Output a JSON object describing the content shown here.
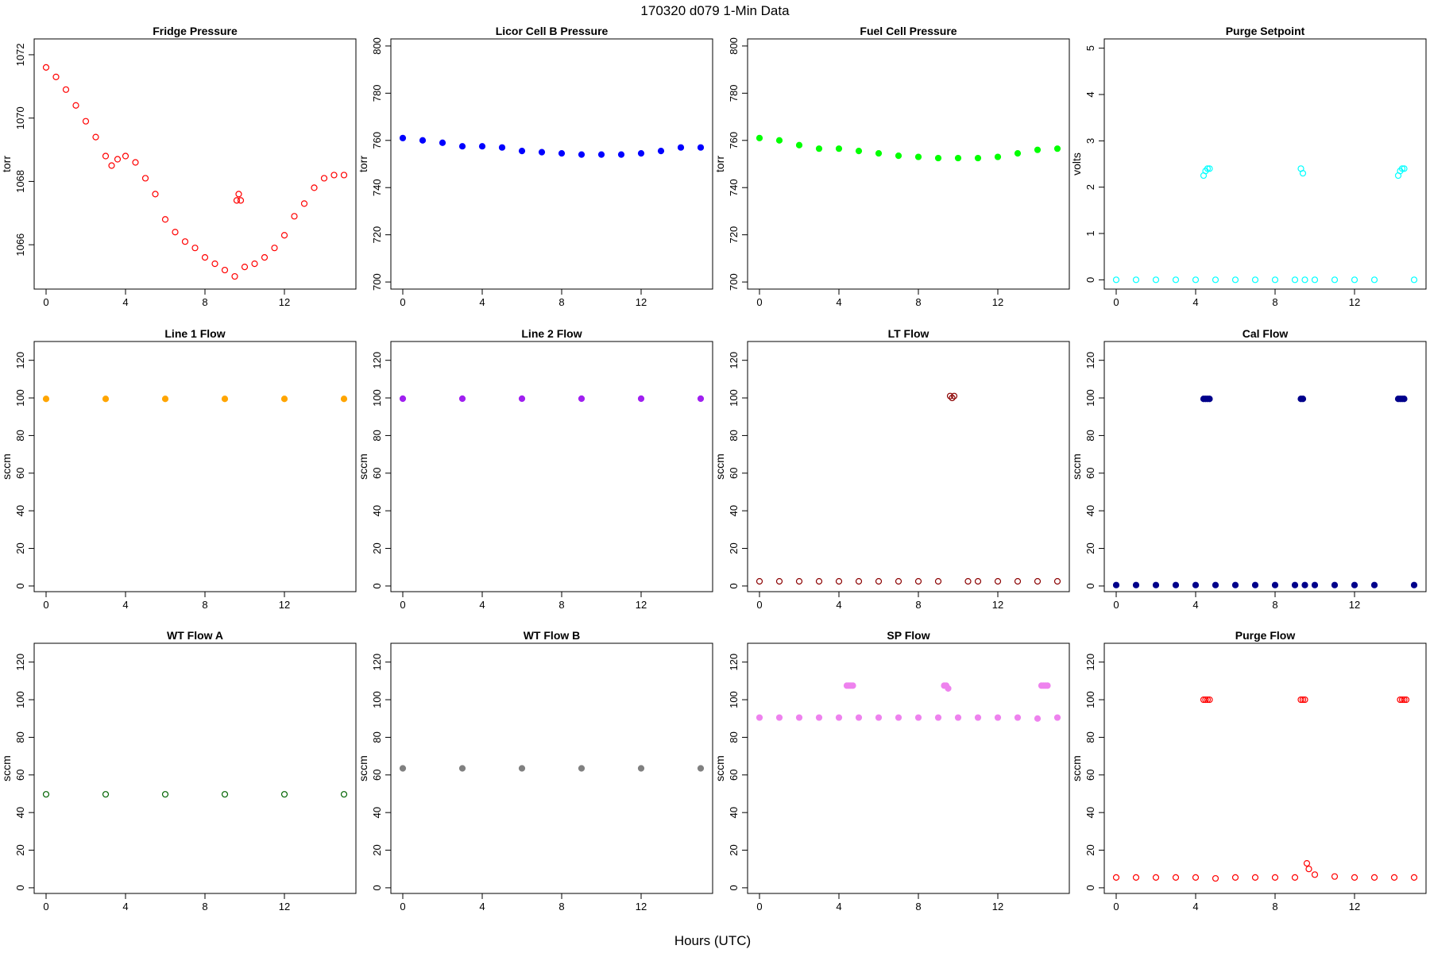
{
  "figure": {
    "title": "170320   d079   1-Min Data",
    "xlabel": "Hours (UTC)"
  },
  "chart_data": [
    {
      "type": "scatter",
      "title": "Fridge Pressure",
      "ylabel": "torr",
      "xlim": [
        0,
        15
      ],
      "ylim": [
        1064.6,
        1072.5
      ],
      "xticks": [
        0,
        4,
        8,
        12
      ],
      "yticks": [
        1066,
        1068,
        1070,
        1072
      ],
      "color": "#ff0000",
      "marker": "open-circle",
      "series": [
        {
          "x": [
            0,
            0.5,
            1,
            1.5,
            2,
            2.5,
            3,
            3.3,
            3.6,
            4,
            4.5,
            5,
            5.5,
            6,
            6.5,
            7,
            7.5,
            8,
            8.5,
            9,
            9.5,
            9.6,
            9.7,
            9.8,
            10,
            10.5,
            11,
            11.5,
            12,
            12.5,
            13,
            13.5,
            14,
            14.5,
            15
          ],
          "y": [
            1071.6,
            1071.3,
            1070.9,
            1070.4,
            1069.9,
            1069.4,
            1068.8,
            1068.5,
            1068.7,
            1068.8,
            1068.6,
            1068.1,
            1067.6,
            1066.8,
            1066.4,
            1066.1,
            1065.9,
            1065.6,
            1065.4,
            1065.2,
            1065.0,
            1067.4,
            1067.6,
            1067.4,
            1065.3,
            1065.4,
            1065.6,
            1065.9,
            1066.3,
            1066.9,
            1067.3,
            1067.8,
            1068.1,
            1068.2,
            1068.2
          ]
        }
      ]
    },
    {
      "type": "scatter",
      "title": "Licor Cell B Pressure",
      "ylabel": "torr",
      "xlim": [
        0,
        15
      ],
      "ylim": [
        697,
        803
      ],
      "xticks": [
        0,
        4,
        8,
        12
      ],
      "yticks": [
        700,
        720,
        740,
        760,
        780,
        800
      ],
      "color": "#0000ff",
      "marker": "filled-circle",
      "series": [
        {
          "x": [
            0,
            1,
            2,
            3,
            4,
            5,
            6,
            7,
            8,
            9,
            10,
            11,
            12,
            13,
            14,
            15
          ],
          "y": [
            761,
            760,
            759,
            757.5,
            757.5,
            757,
            755.5,
            755,
            754.5,
            754,
            754,
            754,
            754.5,
            755.5,
            757,
            757
          ]
        }
      ]
    },
    {
      "type": "scatter",
      "title": "Fuel Cell Pressure",
      "ylabel": "torr",
      "xlim": [
        0,
        15
      ],
      "ylim": [
        697,
        803
      ],
      "xticks": [
        0,
        4,
        8,
        12
      ],
      "yticks": [
        700,
        720,
        740,
        760,
        780,
        800
      ],
      "color": "#00ff00",
      "marker": "filled-circle",
      "series": [
        {
          "x": [
            0,
            1,
            2,
            3,
            4,
            5,
            6,
            7,
            8,
            9,
            10,
            11,
            12,
            13,
            14,
            15
          ],
          "y": [
            761,
            760,
            758,
            756.5,
            756.5,
            755.5,
            754.5,
            753.5,
            753,
            752.5,
            752.5,
            752.5,
            753,
            754.5,
            756,
            756.5
          ]
        }
      ]
    },
    {
      "type": "scatter",
      "title": "Purge Setpoint",
      "ylabel": "volts",
      "xlim": [
        0,
        15
      ],
      "ylim": [
        -0.2,
        5.2
      ],
      "xticks": [
        0,
        4,
        8,
        12
      ],
      "yticks": [
        0,
        1,
        2,
        3,
        4,
        5
      ],
      "color": "#00ffff",
      "marker": "open-circle",
      "series": [
        {
          "x": [
            0,
            1,
            2,
            3,
            4,
            4.4,
            4.5,
            4.6,
            4.7,
            5,
            6,
            7,
            8,
            9,
            9.3,
            9.4,
            9.5,
            10,
            11,
            12,
            13,
            14.2,
            14.3,
            14.4,
            14.5,
            15
          ],
          "y": [
            0,
            0,
            0,
            0,
            0,
            2.25,
            2.35,
            2.4,
            2.4,
            0,
            0,
            0,
            0,
            0,
            2.4,
            2.3,
            0,
            0,
            0,
            0,
            0,
            2.25,
            2.35,
            2.4,
            2.4,
            0
          ]
        }
      ]
    },
    {
      "type": "scatter",
      "title": "Line 1 Flow",
      "ylabel": "sccm",
      "xlim": [
        0,
        15
      ],
      "ylim": [
        -3,
        130
      ],
      "xticks": [
        0,
        4,
        8,
        12
      ],
      "yticks": [
        0,
        20,
        40,
        60,
        80,
        100,
        120
      ],
      "color": "#ffa500",
      "marker": "filled-circle",
      "series": [
        {
          "x": [
            0,
            3,
            6,
            9,
            12,
            15
          ],
          "y": [
            99.5,
            99.5,
            99.5,
            99.5,
            99.5,
            99.5
          ]
        }
      ]
    },
    {
      "type": "scatter",
      "title": "Line 2 Flow",
      "ylabel": "sccm",
      "xlim": [
        0,
        15
      ],
      "ylim": [
        -3,
        130
      ],
      "xticks": [
        0,
        4,
        8,
        12
      ],
      "yticks": [
        0,
        20,
        40,
        60,
        80,
        100,
        120
      ],
      "color": "#a020f0",
      "marker": "filled-circle",
      "series": [
        {
          "x": [
            0,
            3,
            6,
            9,
            12,
            15
          ],
          "y": [
            99.6,
            99.6,
            99.6,
            99.6,
            99.6,
            99.6
          ]
        }
      ]
    },
    {
      "type": "scatter",
      "title": "LT Flow",
      "ylabel": "sccm",
      "xlim": [
        0,
        15
      ],
      "ylim": [
        -3,
        130
      ],
      "xticks": [
        0,
        4,
        8,
        12
      ],
      "yticks": [
        0,
        20,
        40,
        60,
        80,
        100,
        120
      ],
      "color": "#8b0000",
      "marker": "open-circle",
      "series": [
        {
          "x": [
            0,
            1,
            2,
            3,
            4,
            5,
            6,
            7,
            8,
            9,
            9.6,
            9.7,
            9.8,
            10.5,
            11,
            12,
            13,
            14,
            15
          ],
          "y": [
            2.5,
            2.5,
            2.5,
            2.5,
            2.5,
            2.5,
            2.5,
            2.5,
            2.5,
            2.5,
            101,
            100,
            101,
            2.5,
            2.5,
            2.5,
            2.5,
            2.5,
            2.5
          ]
        }
      ]
    },
    {
      "type": "scatter",
      "title": "Cal Flow",
      "ylabel": "sccm",
      "xlim": [
        0,
        15
      ],
      "ylim": [
        -3,
        130
      ],
      "xticks": [
        0,
        4,
        8,
        12
      ],
      "yticks": [
        0,
        20,
        40,
        60,
        80,
        100,
        120
      ],
      "color": "#00008b",
      "marker": "filled-circle",
      "series": [
        {
          "x": [
            0,
            1,
            2,
            3,
            4,
            4.4,
            4.5,
            4.6,
            4.7,
            5,
            6,
            7,
            8,
            9,
            9.3,
            9.4,
            9.5,
            10,
            11,
            12,
            13,
            14.2,
            14.3,
            14.4,
            14.5,
            15
          ],
          "y": [
            0.5,
            0.5,
            0.5,
            0.5,
            0.5,
            99.5,
            99.5,
            99.5,
            99.5,
            0.5,
            0.5,
            0.5,
            0.5,
            0.5,
            99.5,
            99.5,
            0.5,
            0.5,
            0.5,
            0.5,
            0.5,
            99.5,
            99.5,
            99.5,
            99.5,
            0.5
          ]
        }
      ]
    },
    {
      "type": "scatter",
      "title": "WT Flow A",
      "ylabel": "sccm",
      "xlim": [
        0,
        15
      ],
      "ylim": [
        -3,
        130
      ],
      "xticks": [
        0,
        4,
        8,
        12
      ],
      "yticks": [
        0,
        20,
        40,
        60,
        80,
        100,
        120
      ],
      "color": "#006400",
      "marker": "open-circle",
      "series": [
        {
          "x": [
            0,
            3,
            6,
            9,
            12,
            15
          ],
          "y": [
            49.7,
            49.7,
            49.7,
            49.7,
            49.7,
            49.7
          ]
        }
      ]
    },
    {
      "type": "scatter",
      "title": "WT Flow B",
      "ylabel": "sccm",
      "xlim": [
        0,
        15
      ],
      "ylim": [
        -3,
        130
      ],
      "xticks": [
        0,
        4,
        8,
        12
      ],
      "yticks": [
        0,
        20,
        40,
        60,
        80,
        100,
        120
      ],
      "color": "#808080",
      "marker": "filled-circle",
      "series": [
        {
          "x": [
            0,
            3,
            6,
            9,
            12,
            15
          ],
          "y": [
            63.5,
            63.5,
            63.5,
            63.5,
            63.5,
            63.5
          ]
        }
      ]
    },
    {
      "type": "scatter",
      "title": "SP Flow",
      "ylabel": "sccm",
      "xlim": [
        0,
        15
      ],
      "ylim": [
        -3,
        130
      ],
      "xticks": [
        0,
        4,
        8,
        12
      ],
      "yticks": [
        0,
        20,
        40,
        60,
        80,
        100,
        120
      ],
      "color": "#ee82ee",
      "marker": "filled-circle",
      "series": [
        {
          "x": [
            0,
            1,
            2,
            3,
            4,
            4.4,
            4.5,
            4.6,
            4.7,
            5,
            6,
            7,
            8,
            9,
            9.3,
            9.4,
            9.5,
            10,
            11,
            12,
            13,
            14,
            14.2,
            14.3,
            14.4,
            14.5,
            15
          ],
          "y": [
            90.5,
            90.5,
            90.5,
            90.5,
            90.5,
            107.5,
            107.5,
            107.5,
            107.5,
            90.5,
            90.5,
            90.5,
            90.5,
            90.5,
            107.5,
            107.5,
            106,
            90.5,
            90.5,
            90.5,
            90.5,
            90,
            107.5,
            107.5,
            107.5,
            107.5,
            90.5
          ]
        }
      ]
    },
    {
      "type": "scatter",
      "title": "Purge Flow",
      "ylabel": "sccm",
      "xlim": [
        0,
        15
      ],
      "ylim": [
        -3,
        130
      ],
      "xticks": [
        0,
        4,
        8,
        12
      ],
      "yticks": [
        0,
        20,
        40,
        60,
        80,
        100,
        120
      ],
      "color": "#ff0000",
      "marker": "open-circle",
      "series": [
        {
          "x": [
            0,
            1,
            2,
            3,
            4,
            4.4,
            4.5,
            4.6,
            4.7,
            5,
            6,
            7,
            8,
            9,
            9.3,
            9.4,
            9.5,
            9.6,
            9.7,
            10,
            11,
            12,
            13,
            14,
            14.3,
            14.4,
            14.5,
            14.6,
            15
          ],
          "y": [
            5.5,
            5.5,
            5.5,
            5.5,
            5.5,
            100,
            100,
            100,
            100,
            5,
            5.5,
            5.5,
            5.5,
            5.5,
            100,
            100,
            100,
            13,
            10,
            7,
            6,
            5.5,
            5.5,
            5.5,
            100,
            100,
            100,
            100,
            5.5
          ]
        }
      ]
    }
  ]
}
